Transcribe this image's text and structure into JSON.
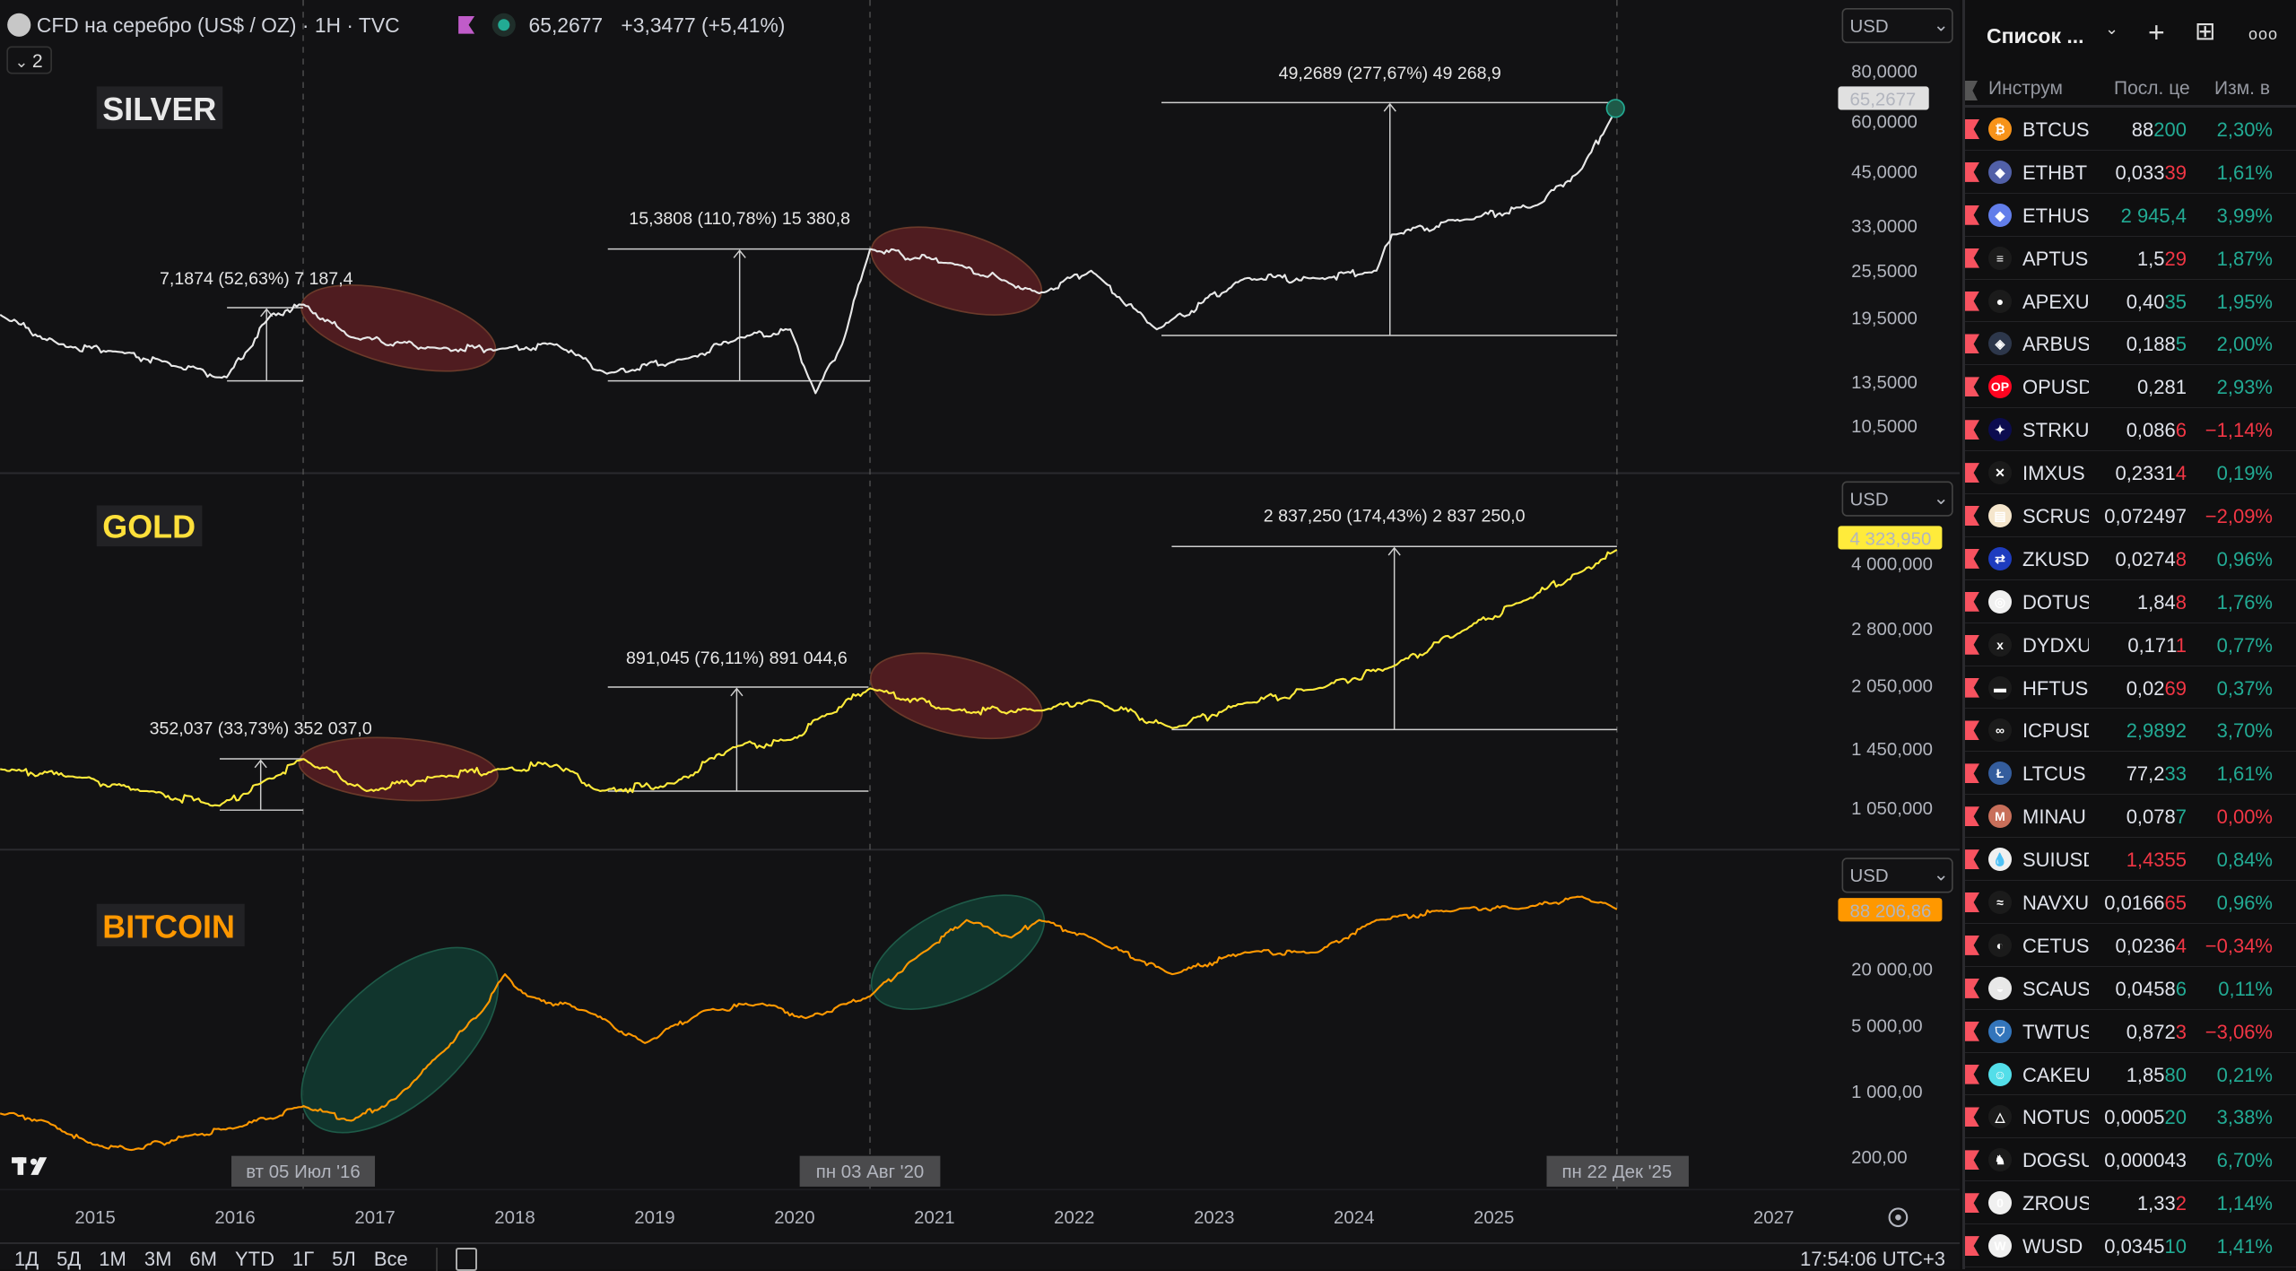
{
  "legend": {
    "title": "CFD на серебро (US$ / OZ) · 1H · TVC",
    "price": "65,2677",
    "change": "+3,3477 (+5,41%)",
    "collapse_count": "2"
  },
  "currency": "USD",
  "pane_labels": {
    "silver": "SILVER",
    "gold": "GOLD",
    "bitcoin": "BITCOIN"
  },
  "measurements": {
    "silver": [
      "7,1874 (52,63%) 7 187,4",
      "15,3808 (110,78%) 15 380,8",
      "49,2689 (277,67%) 49 268,9"
    ],
    "gold": [
      "352,037 (33,73%) 352 037,0",
      "891,045 (76,11%) 891 044,6",
      "2 837,250 (174,43%) 2 837 250,0"
    ]
  },
  "crosshair_dates": [
    "вт 05 Июл '16",
    "пн 03 Авг '20",
    "пн 22 Дек '25"
  ],
  "bottom_bar": {
    "ranges": [
      "1Д",
      "5Д",
      "1М",
      "3М",
      "6М",
      "YTD",
      "1Г",
      "5Л",
      "Все"
    ],
    "clock": "17:54:06 UTC+3"
  },
  "colors": {
    "silver": "#e8e8e8",
    "gold": "#ffeb3b",
    "bitcoin": "#ff9800",
    "up": "#22ab94",
    "down": "#f23645",
    "ellipse_red": "#5a1f22",
    "ellipse_green": "#123a30"
  },
  "chart_data": {
    "type": "line",
    "x_unit": "year",
    "xlim": [
      2014.32,
      2028.3
    ],
    "x_ticks": [
      {
        "label": "2015",
        "value": 2015
      },
      {
        "label": "2016",
        "value": 2016
      },
      {
        "label": "2017",
        "value": 2017
      },
      {
        "label": "2018",
        "value": 2018
      },
      {
        "label": "2019",
        "value": 2019
      },
      {
        "label": "2020",
        "value": 2020
      },
      {
        "label": "2021",
        "value": 2021
      },
      {
        "label": "2022",
        "value": 2022
      },
      {
        "label": "2023",
        "value": 2023
      },
      {
        "label": "2024",
        "value": 2024
      },
      {
        "label": "2025",
        "value": 2025
      },
      {
        "label": "2027",
        "value": 2027
      }
    ],
    "panes": [
      {
        "id": "silver",
        "scale": "log",
        "last_price_label": "65,2677",
        "y_ticks": [
          {
            "label": "80,0000",
            "value": 80
          },
          {
            "label": "60,0000",
            "value": 60
          },
          {
            "label": "45,0000",
            "value": 45
          },
          {
            "label": "33,0000",
            "value": 33
          },
          {
            "label": "25,5000",
            "value": 25.5
          },
          {
            "label": "19,5000",
            "value": 19.5
          },
          {
            "label": "13,5000",
            "value": 13.5
          },
          {
            "label": "10,5000",
            "value": 10.5
          }
        ],
        "points": [
          [
            2014.32,
            19.9
          ],
          [
            2014.74,
            16.8
          ],
          [
            2015.16,
            16.1
          ],
          [
            2015.58,
            14.8
          ],
          [
            2015.94,
            13.9
          ],
          [
            2016.26,
            19.9
          ],
          [
            2016.49,
            21.1
          ],
          [
            2016.83,
            17.5
          ],
          [
            2017.46,
            16.4
          ],
          [
            2017.93,
            16.4
          ],
          [
            2018.3,
            16.8
          ],
          [
            2018.66,
            14.2
          ],
          [
            2019.24,
            15.5
          ],
          [
            2019.61,
            17.5
          ],
          [
            2019.97,
            18.3
          ],
          [
            2020.15,
            12.7
          ],
          [
            2020.34,
            16.8
          ],
          [
            2020.54,
            29.0
          ],
          [
            2021.13,
            26.7
          ],
          [
            2021.75,
            22.5
          ],
          [
            2022.12,
            25.6
          ],
          [
            2022.59,
            18.3
          ],
          [
            2023.22,
            24.5
          ],
          [
            2023.74,
            24.5
          ],
          [
            2024.16,
            25.6
          ],
          [
            2024.27,
            31.5
          ],
          [
            2024.79,
            34.3
          ],
          [
            2025.31,
            37.3
          ],
          [
            2025.63,
            46.0
          ],
          [
            2025.88,
            65.27
          ]
        ]
      },
      {
        "id": "gold",
        "scale": "log",
        "last_price_label": "4 323,950",
        "y_ticks": [
          {
            "label": "4 000,000",
            "value": 4000000
          },
          {
            "label": "2 800,000",
            "value": 2800000
          },
          {
            "label": "2 050,000",
            "value": 2050000
          },
          {
            "label": "1 450,000",
            "value": 1450000
          },
          {
            "label": "1 050,000",
            "value": 1050000
          }
        ],
        "points": [
          [
            2014.32,
            1303000
          ],
          [
            2014.84,
            1252000
          ],
          [
            2015.37,
            1155000
          ],
          [
            2015.89,
            1066000
          ],
          [
            2016.18,
            1203000
          ],
          [
            2016.49,
            1377000
          ],
          [
            2016.94,
            1155000
          ],
          [
            2017.46,
            1252000
          ],
          [
            2017.93,
            1303000
          ],
          [
            2018.3,
            1334000
          ],
          [
            2018.61,
            1155000
          ],
          [
            2019.14,
            1203000
          ],
          [
            2019.56,
            1469000
          ],
          [
            2019.97,
            1528000
          ],
          [
            2020.18,
            1725000
          ],
          [
            2020.54,
            2026000
          ],
          [
            2021.13,
            1795000
          ],
          [
            2021.75,
            1795000
          ],
          [
            2022.12,
            1900000
          ],
          [
            2022.7,
            1630000
          ],
          [
            2023.22,
            1870000
          ],
          [
            2023.74,
            2026000
          ],
          [
            2024.27,
            2280000
          ],
          [
            2024.79,
            2790000
          ],
          [
            2025.21,
            3270000
          ],
          [
            2025.63,
            3840000
          ],
          [
            2025.88,
            4323950
          ]
        ]
      },
      {
        "id": "bitcoin",
        "scale": "log",
        "last_price_label": "88 206,86",
        "y_ticks": [
          {
            "label": "20 000,00",
            "value": 20000
          },
          {
            "label": "5 000,00",
            "value": 5000
          },
          {
            "label": "1 000,00",
            "value": 1000
          },
          {
            "label": "200,00",
            "value": 200
          }
        ],
        "points": [
          [
            2014.32,
            589
          ],
          [
            2014.63,
            492
          ],
          [
            2014.95,
            287
          ],
          [
            2015.26,
            240
          ],
          [
            2015.68,
            343
          ],
          [
            2016.0,
            411
          ],
          [
            2016.49,
            705
          ],
          [
            2016.83,
            492
          ],
          [
            2017.15,
            844
          ],
          [
            2017.46,
            2480
          ],
          [
            2017.77,
            7310
          ],
          [
            2017.93,
            17950
          ],
          [
            2018.09,
            10470
          ],
          [
            2018.51,
            7310
          ],
          [
            2018.93,
            3310
          ],
          [
            2019.35,
            7310
          ],
          [
            2019.77,
            8740
          ],
          [
            2020.08,
            6100
          ],
          [
            2020.54,
            10470
          ],
          [
            2020.92,
            30800
          ],
          [
            2021.23,
            67900
          ],
          [
            2021.55,
            44100
          ],
          [
            2021.75,
            67900
          ],
          [
            2022.12,
            44100
          ],
          [
            2022.7,
            17950
          ],
          [
            2023.22,
            30800
          ],
          [
            2023.74,
            30800
          ],
          [
            2024.16,
            67900
          ],
          [
            2024.79,
            90600
          ],
          [
            2025.21,
            90600
          ],
          [
            2025.63,
            120900
          ],
          [
            2025.88,
            88206.86
          ]
        ]
      }
    ]
  },
  "watchlist": {
    "title": "Список ...",
    "columns": [
      "Инструм",
      "Посл. це",
      "Изм. в"
    ],
    "rows": [
      {
        "symbol": "BTCUS",
        "price_main": "88",
        "price_tail": "200",
        "tail": "g",
        "change": "2,30%",
        "dir": "g",
        "icon_color": "#f7931a",
        "glyph": "₿"
      },
      {
        "symbol": "ETHBT",
        "price_main": "0,033",
        "price_tail": "39",
        "tail": "r",
        "change": "1,61%",
        "dir": "g",
        "icon_color": "#5160a8",
        "glyph": "◆"
      },
      {
        "symbol": "ETHUS",
        "price_main": "",
        "price_tail": "2 945,4",
        "tail": "g",
        "change": "3,99%",
        "dir": "g",
        "icon_color": "#627eea",
        "glyph": "◆"
      },
      {
        "symbol": "APTUS",
        "price_main": "1,5",
        "price_tail": "29",
        "tail": "r",
        "change": "1,87%",
        "dir": "g",
        "icon_color": "#1b1b1b",
        "glyph": "≡"
      },
      {
        "symbol": "APEXU",
        "price_main": "0,40",
        "price_tail": "35",
        "tail": "g",
        "change": "1,95%",
        "dir": "g",
        "icon_color": "#1b1b1b",
        "glyph": "●"
      },
      {
        "symbol": "ARBUS",
        "price_main": "0,188",
        "price_tail": "5",
        "tail": "g",
        "change": "2,00%",
        "dir": "g",
        "icon_color": "#2d374b",
        "glyph": "◈"
      },
      {
        "symbol": "OPUSD",
        "price_main": "0,281",
        "price_tail": "",
        "tail": "g",
        "change": "2,93%",
        "dir": "g",
        "icon_color": "#ff0420",
        "glyph": "OP"
      },
      {
        "symbol": "STRKU",
        "price_main": "0,086",
        "price_tail": "6",
        "tail": "r",
        "change": "−1,14%",
        "dir": "r",
        "icon_color": "#0c0c4f",
        "glyph": "✦"
      },
      {
        "symbol": "IMXUS",
        "price_main": "0,2331",
        "price_tail": "4",
        "tail": "r",
        "change": "0,19%",
        "dir": "g",
        "icon_color": "#1a1a1a",
        "glyph": "✕"
      },
      {
        "symbol": "SCRUS",
        "price_main": "0,072497",
        "price_tail": "",
        "tail": "g",
        "change": "−2,09%",
        "dir": "r",
        "icon_color": "#f5e6cc",
        "glyph": "▤"
      },
      {
        "symbol": "ZKUSD",
        "price_main": "0,0274",
        "price_tail": "8",
        "tail": "r",
        "change": "0,96%",
        "dir": "g",
        "icon_color": "#1e3cbf",
        "glyph": "⇄"
      },
      {
        "symbol": "DOTUS",
        "price_main": "1,84",
        "price_tail": "8",
        "tail": "r",
        "change": "1,76%",
        "dir": "g",
        "icon_color": "#f0f0f0",
        "glyph": "◎"
      },
      {
        "symbol": "DYDXU",
        "price_main": "0,171",
        "price_tail": "1",
        "tail": "r",
        "change": "0,77%",
        "dir": "g",
        "icon_color": "#1b1b1b",
        "glyph": "x"
      },
      {
        "symbol": "HFTUS",
        "price_main": "0,02",
        "price_tail": "69",
        "tail": "r",
        "change": "0,37%",
        "dir": "g",
        "icon_color": "#1b1b1b",
        "glyph": "▬"
      },
      {
        "symbol": "ICPUSD",
        "price_main": "",
        "price_tail": "2,9892",
        "tail": "g",
        "change": "3,70%",
        "dir": "g",
        "icon_color": "#1b1b1b",
        "glyph": "∞"
      },
      {
        "symbol": "LTCUS",
        "price_main": "77,2",
        "price_tail": "33",
        "tail": "g",
        "change": "1,61%",
        "dir": "g",
        "icon_color": "#345d9d",
        "glyph": "Ł"
      },
      {
        "symbol": "MINAU",
        "price_main": "0,078",
        "price_tail": "7",
        "tail": "g",
        "change": "0,00%",
        "dir": "r",
        "icon_color": "#c86f5a",
        "glyph": "M"
      },
      {
        "symbol": "SUIUSD",
        "price_main": "",
        "price_tail": "1,4355",
        "tail": "r",
        "change": "0,84%",
        "dir": "g",
        "icon_color": "#f0f0f0",
        "glyph": "💧"
      },
      {
        "symbol": "NAVXU",
        "price_main": "0,0166",
        "price_tail": "65",
        "tail": "r",
        "change": "0,96%",
        "dir": "g",
        "icon_color": "#1b1b1b",
        "glyph": "≈"
      },
      {
        "symbol": "CETUS",
        "price_main": "0,0236",
        "price_tail": "4",
        "tail": "r",
        "change": "−0,34%",
        "dir": "r",
        "icon_color": "#1b1b1b",
        "glyph": "◐"
      },
      {
        "symbol": "SCAUS",
        "price_main": "0,0458",
        "price_tail": "6",
        "tail": "g",
        "change": "0,11%",
        "dir": "g",
        "icon_color": "#e8e8e8",
        "glyph": "◒"
      },
      {
        "symbol": "TWTUS",
        "price_main": "0,872",
        "price_tail": "3",
        "tail": "r",
        "change": "−3,06%",
        "dir": "r",
        "icon_color": "#3375bb",
        "glyph": "⛉"
      },
      {
        "symbol": "CAKEU",
        "price_main": "1,85",
        "price_tail": "80",
        "tail": "g",
        "change": "0,21%",
        "dir": "g",
        "icon_color": "#53dee9",
        "glyph": "☺"
      },
      {
        "symbol": "NOTUS",
        "price_main": "0,0005",
        "price_tail": "20",
        "tail": "g",
        "change": "3,38%",
        "dir": "g",
        "icon_color": "#1b1b1b",
        "glyph": "△"
      },
      {
        "symbol": "DOGSU",
        "price_main": "0,000043",
        "price_tail": "",
        "tail": "g",
        "change": "6,70%",
        "dir": "g",
        "icon_color": "#1b1b1b",
        "glyph": "♞"
      },
      {
        "symbol": "ZROUS",
        "price_main": "1,33",
        "price_tail": "2",
        "tail": "r",
        "change": "1,14%",
        "dir": "g",
        "icon_color": "#f0f0f0",
        "glyph": "0"
      },
      {
        "symbol": "WUSD",
        "price_main": "0,0345",
        "price_tail": "10",
        "tail": "g",
        "change": "1,41%",
        "dir": "g",
        "icon_color": "#f0f0f0",
        "glyph": "W"
      }
    ]
  }
}
